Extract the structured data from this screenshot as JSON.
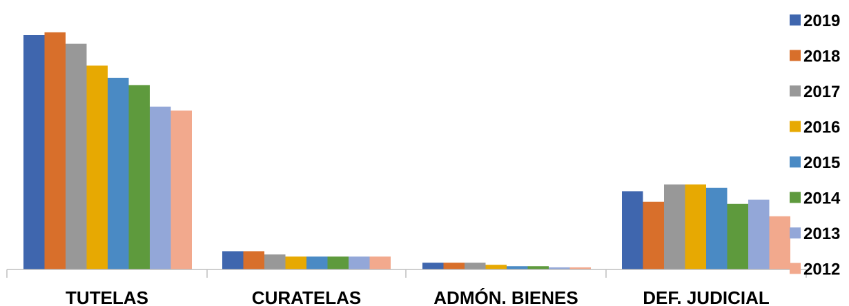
{
  "chart_data": {
    "type": "bar",
    "title": "",
    "xlabel": "",
    "ylabel": "",
    "ylim": [
      0,
      100
    ],
    "grid": false,
    "legend_placement": "right",
    "categories": [
      "TUTELAS",
      "CURATELAS",
      "ADMÓN. BIENES",
      "DEF. JUDICIAL"
    ],
    "series": [
      {
        "name": "2019",
        "color": "#3F66AE",
        "values": [
          100.0,
          7.8,
          2.9,
          33.4
        ]
      },
      {
        "name": "2018",
        "color": "#D86F2B",
        "values": [
          101.2,
          7.8,
          2.9,
          28.9
        ]
      },
      {
        "name": "2017",
        "color": "#989898",
        "values": [
          96.3,
          6.4,
          2.9,
          36.3
        ]
      },
      {
        "name": "2016",
        "color": "#E7A902",
        "values": [
          87.0,
          5.5,
          2.0,
          36.3
        ]
      },
      {
        "name": "2015",
        "color": "#4A8AC4",
        "values": [
          81.8,
          5.5,
          1.4,
          34.8
        ]
      },
      {
        "name": "2014",
        "color": "#5E9A3D",
        "values": [
          78.7,
          5.5,
          1.4,
          28.0
        ]
      },
      {
        "name": "2013",
        "color": "#93A7D8",
        "values": [
          69.5,
          5.5,
          0.9,
          29.8
        ]
      },
      {
        "name": "2012",
        "color": "#F2A98D",
        "values": [
          67.8,
          5.5,
          0.9,
          22.7
        ]
      }
    ],
    "axis_color": "#BFBFBF"
  }
}
